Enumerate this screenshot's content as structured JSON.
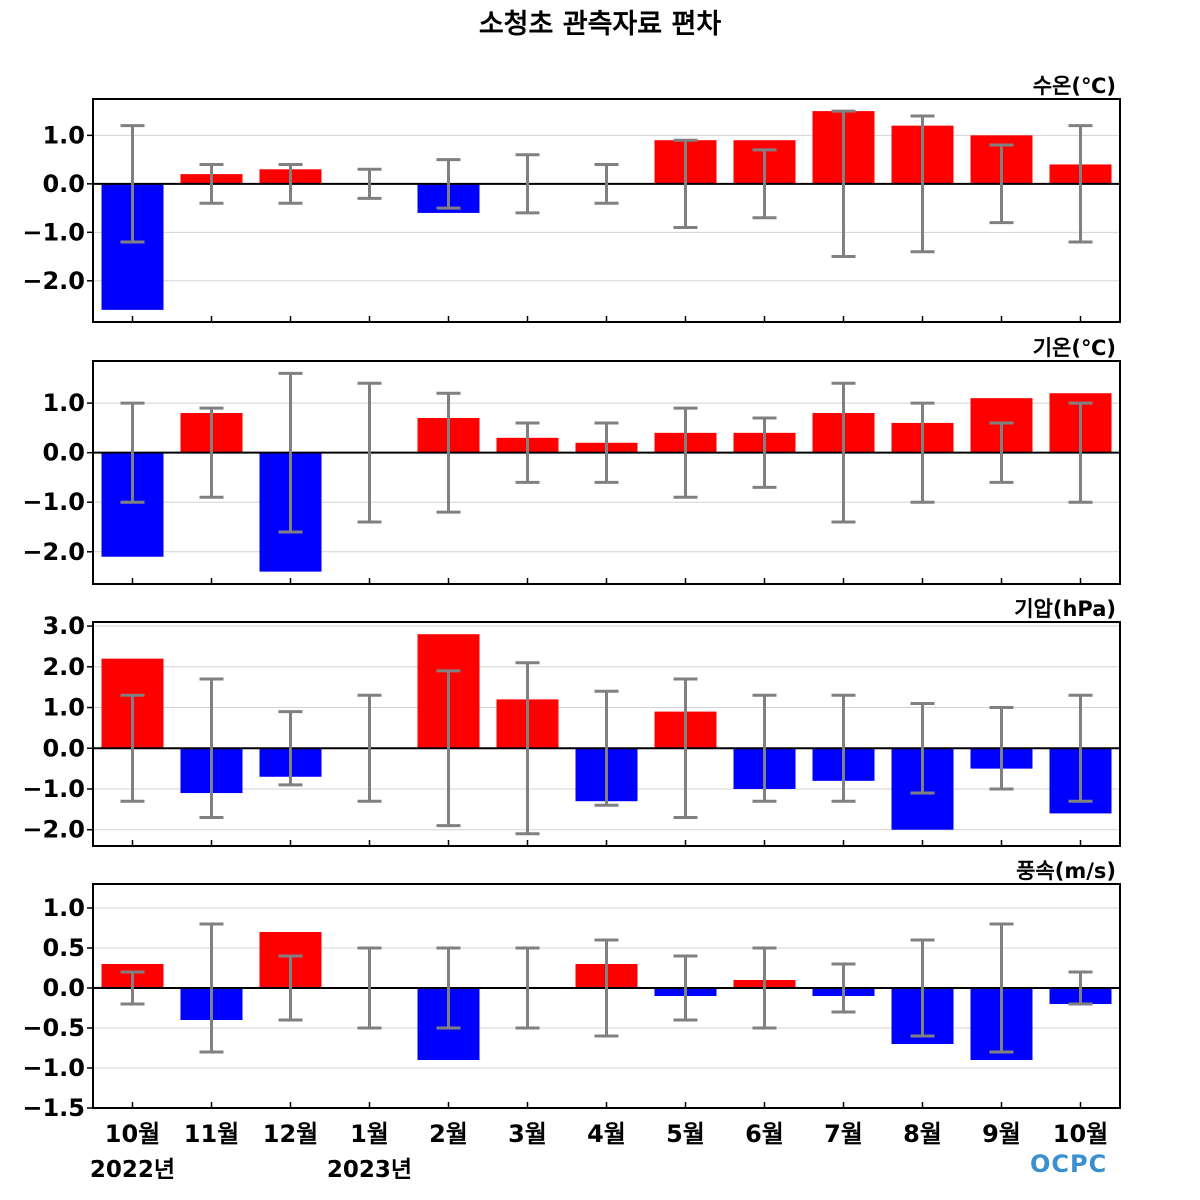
{
  "title": "소청초 관측자료 편차",
  "months": [
    "10월",
    "11월",
    "12월",
    "1월",
    "2월",
    "3월",
    "4월",
    "5월",
    "6월",
    "7월",
    "8월",
    "9월",
    "10월"
  ],
  "years": [
    {
      "label": "2022년",
      "month_index": 0
    },
    {
      "label": "2023년",
      "month_index": 3
    }
  ],
  "logo": {
    "text": "OCPC",
    "icon": "ocpc-logo-icon"
  },
  "colors": {
    "positive": "#ff0000",
    "negative": "#0000ff",
    "errorbar": "#808080",
    "zero_line": "#000000",
    "grid": "#d3d3d3"
  },
  "chart_data": [
    {
      "type": "bar",
      "title": "수온(℃)",
      "categories": [
        "10월",
        "11월",
        "12월",
        "1월",
        "2월",
        "3월",
        "4월",
        "5월",
        "6월",
        "7월",
        "8월",
        "9월",
        "10월"
      ],
      "values": [
        -2.6,
        0.2,
        0.3,
        0.0,
        -0.6,
        0.0,
        0.0,
        0.9,
        0.9,
        1.5,
        1.2,
        1.0,
        0.4
      ],
      "error": [
        1.2,
        0.4,
        0.4,
        0.3,
        0.5,
        0.6,
        0.4,
        0.9,
        0.7,
        1.5,
        1.4,
        0.8,
        1.2
      ],
      "ylim": [
        -2.85,
        1.75
      ],
      "yticks": [
        1.0,
        0.0,
        -1.0,
        -2.0
      ],
      "ytick_labels": [
        "1.0",
        "0.0",
        "−1.0",
        "−2.0"
      ],
      "grid": true
    },
    {
      "type": "bar",
      "title": "기온(℃)",
      "categories": [
        "10월",
        "11월",
        "12월",
        "1월",
        "2월",
        "3월",
        "4월",
        "5월",
        "6월",
        "7월",
        "8월",
        "9월",
        "10월"
      ],
      "values": [
        -2.1,
        0.8,
        -2.4,
        0.0,
        0.7,
        0.3,
        0.2,
        0.4,
        0.4,
        0.8,
        0.6,
        1.1,
        1.2
      ],
      "error": [
        1.0,
        0.9,
        1.6,
        1.4,
        1.2,
        0.6,
        0.6,
        0.9,
        0.7,
        1.4,
        1.0,
        0.6,
        1.0
      ],
      "ylim": [
        -2.65,
        1.85
      ],
      "yticks": [
        1.0,
        0.0,
        -1.0,
        -2.0
      ],
      "ytick_labels": [
        "1.0",
        "0.0",
        "−1.0",
        "−2.0"
      ],
      "grid": true
    },
    {
      "type": "bar",
      "title": "기압(hPa)",
      "categories": [
        "10월",
        "11월",
        "12월",
        "1월",
        "2월",
        "3월",
        "4월",
        "5월",
        "6월",
        "7월",
        "8월",
        "9월",
        "10월"
      ],
      "values": [
        2.2,
        -1.1,
        -0.7,
        0.0,
        2.8,
        1.2,
        -1.3,
        0.9,
        -1.0,
        -0.8,
        -2.0,
        -0.5,
        -1.6
      ],
      "error": [
        1.3,
        1.7,
        0.9,
        1.3,
        1.9,
        2.1,
        1.4,
        1.7,
        1.3,
        1.3,
        1.1,
        1.0,
        1.3
      ],
      "ylim": [
        -2.4,
        3.1
      ],
      "yticks": [
        3.0,
        2.0,
        1.0,
        0.0,
        -1.0,
        -2.0
      ],
      "ytick_labels": [
        "3.0",
        "2.0",
        "1.0",
        "0.0",
        "−1.0",
        "−2.0"
      ],
      "grid": true
    },
    {
      "type": "bar",
      "title": "풍속(m/s)",
      "categories": [
        "10월",
        "11월",
        "12월",
        "1월",
        "2월",
        "3월",
        "4월",
        "5월",
        "6월",
        "7월",
        "8월",
        "9월",
        "10월"
      ],
      "values": [
        0.3,
        -0.4,
        0.7,
        0.0,
        -0.9,
        0.0,
        0.3,
        -0.1,
        0.1,
        -0.1,
        -0.7,
        -0.9,
        -0.2
      ],
      "error": [
        0.2,
        0.8,
        0.4,
        0.5,
        0.5,
        0.5,
        0.6,
        0.4,
        0.5,
        0.3,
        0.6,
        0.8,
        0.2
      ],
      "ylim": [
        -1.5,
        1.3
      ],
      "yticks": [
        1.0,
        0.5,
        0.0,
        -0.5,
        -1.0,
        -1.5
      ],
      "ytick_labels": [
        "1.0",
        "0.5",
        "0.0",
        "−0.5",
        "−1.0",
        "−1.5"
      ],
      "grid": true
    }
  ]
}
